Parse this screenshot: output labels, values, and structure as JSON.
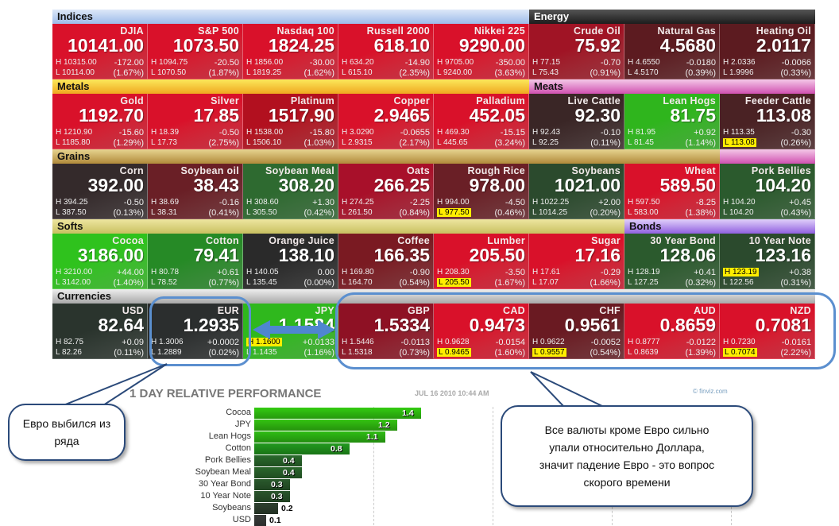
{
  "sections": {
    "indices": "Indices",
    "energy": "Energy",
    "metals": "Metals",
    "meats": "Meats",
    "grains": "Grains",
    "softs": "Softs",
    "bonds": "Bonds",
    "currencies": "Currencies"
  },
  "rows": [
    [
      {
        "name": "DJIA",
        "price": "10141.00",
        "high": "H 10315.00",
        "low": "L 10114.00",
        "change": "-172.00",
        "pct": "(1.67%)",
        "color": "#d9112a"
      },
      {
        "name": "S&P 500",
        "price": "1073.50",
        "high": "H 1094.75",
        "low": "L 1070.50",
        "change": "-20.50",
        "pct": "(1.87%)",
        "color": "#d9112a"
      },
      {
        "name": "Nasdaq 100",
        "price": "1824.25",
        "high": "H 1856.00",
        "low": "L 1819.25",
        "change": "-30.00",
        "pct": "(1.62%)",
        "color": "#d9112a"
      },
      {
        "name": "Russell 2000",
        "price": "618.10",
        "high": "H 634.20",
        "low": "L 615.10",
        "change": "-14.90",
        "pct": "(2.35%)",
        "color": "#d9112a"
      },
      {
        "name": "Nikkei 225",
        "price": "9290.00",
        "high": "H 9705.00",
        "low": "L 9240.00",
        "change": "-350.00",
        "pct": "(3.63%)",
        "color": "#d9112a"
      },
      {
        "name": "Crude Oil",
        "price": "75.92",
        "high": "H 77.15",
        "low": "L 75.43",
        "change": "-0.70",
        "pct": "(0.91%)",
        "color": "#a01425"
      },
      {
        "name": "Natural Gas",
        "price": "4.5680",
        "high": "H 4.6550",
        "low": "L 4.5170",
        "change": "-0.0180",
        "pct": "(0.39%)",
        "color": "#5c1b20"
      },
      {
        "name": "Heating Oil",
        "price": "2.0117",
        "high": "H 2.0336",
        "low": "L 1.9996",
        "change": "-0.0066",
        "pct": "(0.33%)",
        "color": "#5c1b20"
      }
    ],
    [
      {
        "name": "Gold",
        "price": "1192.70",
        "high": "H 1210.90",
        "low": "L 1185.80",
        "change": "-15.60",
        "pct": "(1.29%)",
        "color": "#d9112a"
      },
      {
        "name": "Silver",
        "price": "17.85",
        "high": "H 18.39",
        "low": "L 17.73",
        "change": "-0.50",
        "pct": "(2.75%)",
        "color": "#d9112a"
      },
      {
        "name": "Platinum",
        "price": "1517.90",
        "high": "H 1538.00",
        "low": "L 1506.10",
        "change": "-15.80",
        "pct": "(1.03%)",
        "color": "#b2101f"
      },
      {
        "name": "Copper",
        "price": "2.9465",
        "high": "H 3.0290",
        "low": "L 2.9315",
        "change": "-0.0655",
        "pct": "(2.17%)",
        "color": "#d9112a"
      },
      {
        "name": "Palladium",
        "price": "452.05",
        "high": "H 469.30",
        "low": "L 445.65",
        "change": "-15.15",
        "pct": "(3.24%)",
        "color": "#d9112a"
      },
      {
        "name": "Live Cattle",
        "price": "92.30",
        "high": "H 92.43",
        "low": "L 92.25",
        "change": "-0.10",
        "pct": "(0.11%)",
        "color": "#3a2626"
      },
      {
        "name": "Lean Hogs",
        "price": "81.75",
        "high": "H 81.95",
        "low": "L 81.45",
        "change": "+0.92",
        "pct": "(1.14%)",
        "color": "#2fb51d"
      },
      {
        "name": "Feeder Cattle",
        "price": "113.08",
        "high": "H 113.35",
        "low": "L 113.08",
        "change": "-0.30",
        "pct": "(0.26%)",
        "color": "#4a2224",
        "low_highlight": true
      }
    ],
    [
      {
        "name": "Corn",
        "price": "392.00",
        "high": "H 394.25",
        "low": "L 387.50",
        "change": "-0.50",
        "pct": "(0.13%)",
        "color": "#342a2b"
      },
      {
        "name": "Soybean oil",
        "price": "38.43",
        "high": "H 38.69",
        "low": "L 38.31",
        "change": "-0.16",
        "pct": "(0.41%)",
        "color": "#6a1f26"
      },
      {
        "name": "Soybean Meal",
        "price": "308.20",
        "high": "H 308.60",
        "low": "L 305.50",
        "change": "+1.30",
        "pct": "(0.42%)",
        "color": "#2e6a30"
      },
      {
        "name": "Oats",
        "price": "266.25",
        "high": "H 274.25",
        "low": "L 261.50",
        "change": "-2.25",
        "pct": "(0.84%)",
        "color": "#a8102a"
      },
      {
        "name": "Rough Rice",
        "price": "978.00",
        "high": "H 994.00",
        "low": "L 977.50",
        "change": "-4.50",
        "pct": "(0.46%)",
        "color": "#6a1f26",
        "low_highlight": true
      },
      {
        "name": "Soybeans",
        "price": "1021.00",
        "high": "H 1022.25",
        "low": "L 1014.25",
        "change": "+2.00",
        "pct": "(0.20%)",
        "color": "#2b4a2d"
      },
      {
        "name": "Wheat",
        "price": "589.50",
        "high": "H 597.50",
        "low": "L 583.00",
        "change": "-8.25",
        "pct": "(1.38%)",
        "color": "#d9112a"
      },
      {
        "name": "Pork Bellies",
        "price": "104.20",
        "high": "H 104.20",
        "low": "L 104.20",
        "change": "+0.45",
        "pct": "(0.43%)",
        "color": "#2b5a2d"
      }
    ],
    [
      {
        "name": "Cocoa",
        "price": "3186.00",
        "high": "H 3210.00",
        "low": "L 3142.00",
        "change": "+44.00",
        "pct": "(1.40%)",
        "color": "#2fc21d"
      },
      {
        "name": "Cotton",
        "price": "79.41",
        "high": "H 80.78",
        "low": "L 78.52",
        "change": "+0.61",
        "pct": "(0.77%)",
        "color": "#268a26"
      },
      {
        "name": "Orange Juice",
        "price": "138.10",
        "high": "H 140.05",
        "low": "L 135.45",
        "change": "0.00",
        "pct": "(0.00%)",
        "color": "#2a2a2a"
      },
      {
        "name": "Coffee",
        "price": "166.35",
        "high": "H 169.80",
        "low": "L 164.70",
        "change": "-0.90",
        "pct": "(0.54%)",
        "color": "#7a1a22"
      },
      {
        "name": "Lumber",
        "price": "205.50",
        "high": "H 208.30",
        "low": "L 205.50",
        "change": "-3.50",
        "pct": "(1.67%)",
        "color": "#d9112a",
        "low_highlight": true
      },
      {
        "name": "Sugar",
        "price": "17.16",
        "high": "H 17.61",
        "low": "L 17.07",
        "change": "-0.29",
        "pct": "(1.66%)",
        "color": "#d9112a"
      },
      {
        "name": "30 Year Bond",
        "price": "128.06",
        "high": "H 128.19",
        "low": "L 127.25",
        "change": "+0.41",
        "pct": "(0.32%)",
        "color": "#2b5a2d"
      },
      {
        "name": "10 Year Note",
        "price": "123.16",
        "high": "H 123.19",
        "low": "L 122.56",
        "change": "+0.38",
        "pct": "(0.31%)",
        "color": "#2b4a2d",
        "high_highlight": true
      }
    ],
    [
      {
        "name": "USD",
        "price": "82.64",
        "high": "H 82.75",
        "low": "L 82.26",
        "change": "+0.09",
        "pct": "(0.11%)",
        "color": "#2a342d"
      },
      {
        "name": "EUR",
        "price": "1.2935",
        "high": "H 1.3006",
        "low": "L 1.2889",
        "change": "+0.0002",
        "pct": "(0.02%)",
        "color": "#2b2e2e"
      },
      {
        "name": "JPY",
        "price": "1.1584",
        "high": "H 1.1600",
        "low": "L 1.1435",
        "change": "+0.0133",
        "pct": "(1.16%)",
        "color": "#2fb81d",
        "high_highlight": true
      },
      {
        "name": "GBP",
        "price": "1.5334",
        "high": "H 1.5446",
        "low": "L 1.5318",
        "change": "-0.0113",
        "pct": "(0.73%)",
        "color": "#8e1124"
      },
      {
        "name": "CAD",
        "price": "0.9473",
        "high": "H 0.9628",
        "low": "L 0.9465",
        "change": "-0.0154",
        "pct": "(1.60%)",
        "color": "#d9112a",
        "low_highlight": true
      },
      {
        "name": "CHF",
        "price": "0.9561",
        "high": "H 0.9622",
        "low": "L 0.9557",
        "change": "-0.0052",
        "pct": "(0.54%)",
        "color": "#6a1a22",
        "low_highlight": true
      },
      {
        "name": "AUD",
        "price": "0.8659",
        "high": "H 0.8777",
        "low": "L 0.8639",
        "change": "-0.0122",
        "pct": "(1.39%)",
        "color": "#d9112a"
      },
      {
        "name": "NZD",
        "price": "0.7081",
        "high": "H 0.7230",
        "low": "L 0.7074",
        "change": "-0.0161",
        "pct": "(2.22%)",
        "color": "#d9112a",
        "low_highlight": true
      }
    ]
  ],
  "chart_data": {
    "type": "bar",
    "title": "1 DAY RELATIVE PERFORMANCE",
    "date": "JUL 16 2010 10:44 AM",
    "credit": "© finviz.com",
    "categories": [
      "Cocoa",
      "JPY",
      "Lean Hogs",
      "Cotton",
      "Pork Bellies",
      "Soybean Meal",
      "30 Year Bond",
      "10 Year Note",
      "Soybeans",
      "USD"
    ],
    "values": [
      1.4,
      1.2,
      1.1,
      0.8,
      0.4,
      0.4,
      0.3,
      0.3,
      0.2,
      0.1
    ],
    "colors": [
      "#33cc11",
      "#33c311",
      "#2fbd14",
      "#229a1e",
      "#2a6a2c",
      "#2a662c",
      "#2a5a2c",
      "#2a552c",
      "#2e402f",
      "#3a3d3b"
    ],
    "xlim": [
      0,
      4
    ]
  },
  "annotations": {
    "left_callout": "Евро выбился из ряда",
    "right_callout": "Все валюты кроме Евро сильно упали относительно Доллара, значит падение Евро - это вопрос скорого времени"
  }
}
